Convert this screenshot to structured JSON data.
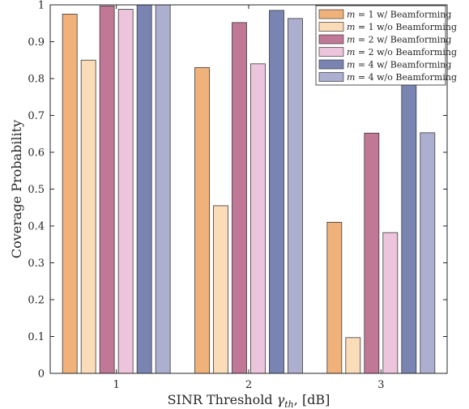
{
  "chart_data": {
    "type": "bar",
    "categories": [
      "1",
      "2",
      "3"
    ],
    "series": [
      {
        "name": "$m = 1$ w/ Beamforming",
        "display_parts": [
          "m",
          " = 1 w/ Beamforming"
        ],
        "color": "#f0b27a",
        "values": [
          0.975,
          0.83,
          0.41
        ]
      },
      {
        "name": "$m = 1$ w/o Beamforming",
        "display_parts": [
          "m",
          " = 1 w/o Beamforming"
        ],
        "color": "#fbdcb8",
        "values": [
          0.85,
          0.455,
          0.097
        ]
      },
      {
        "name": "$m = 2$ w/ Beamforming",
        "display_parts": [
          "m",
          " = 2 w/ Beamforming"
        ],
        "color": "#c07896",
        "values": [
          0.997,
          0.952,
          0.652
        ]
      },
      {
        "name": "$m = 2$ w/o Beamforming",
        "display_parts": [
          "m",
          " = 2 w/o Beamforming"
        ],
        "color": "#ecc4dc",
        "values": [
          0.988,
          0.84,
          0.382
        ]
      },
      {
        "name": "$m = 4$ w/ Beamforming",
        "display_parts": [
          "m",
          " = 4 w/ Beamforming"
        ],
        "color": "#7a84b2",
        "values": [
          1.0,
          0.985,
          0.795
        ]
      },
      {
        "name": "$m = 4$ w/o Beamforming",
        "display_parts": [
          "m",
          " = 4 w/o Beamforming"
        ],
        "color": "#adafd0",
        "values": [
          1.0,
          0.963,
          0.653
        ]
      }
    ],
    "xlabel_parts": [
      "SINR Threshold ",
      "γ",
      "th",
      ", [dB]"
    ],
    "ylabel": "Coverage Probability",
    "ylim": [
      0,
      1
    ],
    "yticks": [
      "0",
      "0.1",
      "0.2",
      "0.3",
      "0.4",
      "0.5",
      "0.6",
      "0.7",
      "0.8",
      "0.9",
      "1"
    ],
    "legend_position": "top-right",
    "grid": false
  }
}
